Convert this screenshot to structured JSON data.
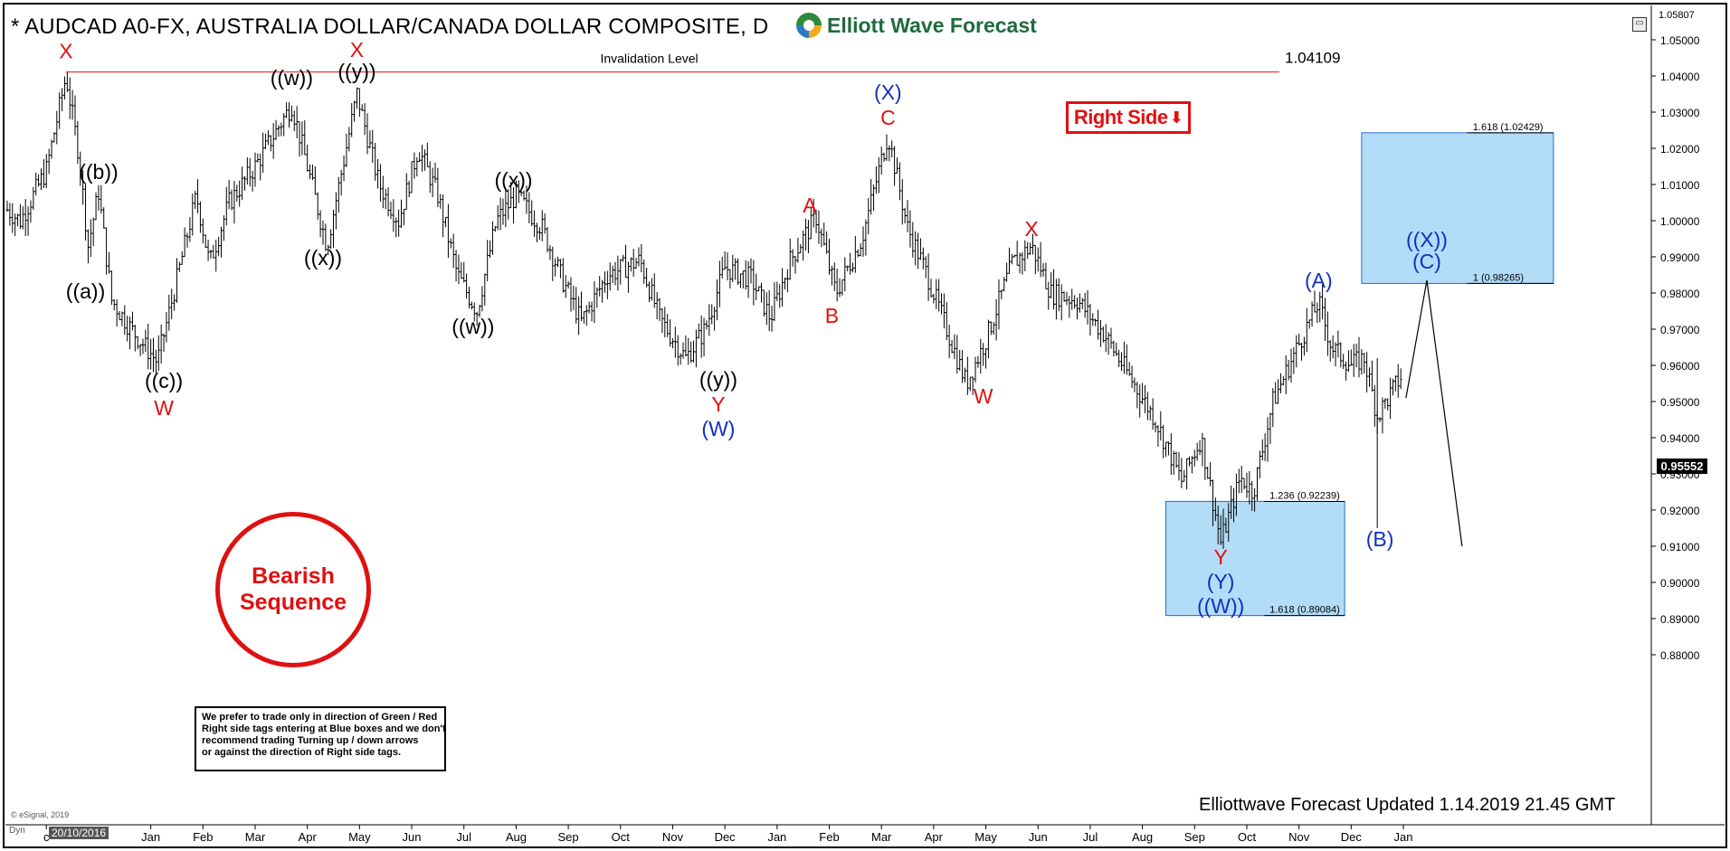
{
  "header": {
    "title": "* AUDCAD A0-FX, AUSTRALIA DOLLAR/CANADA DOLLAR COMPOSITE, D",
    "brand": "Elliott Wave Forecast"
  },
  "colors": {
    "bar": "#000000",
    "wave_red": "#e01010",
    "wave_blue": "#1030c0",
    "box_fill": "#b3dcf8",
    "box_border": "#1c6fd0",
    "invalidation": "#e01010"
  },
  "right_side_tag": {
    "label": "Right Side",
    "icon": "down-arrow-icon"
  },
  "bearish_badge": {
    "line1": "Bearish",
    "line2": "Sequence"
  },
  "note": {
    "line1": "We prefer to trade only in direction of Green / Red",
    "line2": "Right side tags entering at Blue boxes and we don't",
    "line3": "recommend trading Turning up / down arrows",
    "line4": "or against the direction of Right side tags."
  },
  "footer": "Elliottwave Forecast Updated 1.14.2019 21.45 GMT",
  "esignal": "© eSignal, 2019",
  "dyn_label": "Dyn",
  "date_box": "20/10/2016",
  "current_price": "0.95552",
  "top_price": "1.05807",
  "chart_data": {
    "type": "ohlc",
    "y_ticks": [
      1.05,
      1.04,
      1.03,
      1.02,
      1.01,
      1.0,
      0.99,
      0.98,
      0.97,
      0.96,
      0.95,
      0.94,
      0.93,
      0.92,
      0.91,
      0.9,
      0.89,
      0.88
    ],
    "ylim": [
      0.874,
      1.059
    ],
    "x_months": [
      {
        "label": "c",
        "t": 3
      },
      {
        "label": "Jan",
        "t": 11
      },
      {
        "label": "Feb",
        "t": 15
      },
      {
        "label": "Mar",
        "t": 19
      },
      {
        "label": "Apr",
        "t": 23
      },
      {
        "label": "May",
        "t": 27
      },
      {
        "label": "Jun",
        "t": 31
      },
      {
        "label": "Jul",
        "t": 35
      },
      {
        "label": "Aug",
        "t": 39
      },
      {
        "label": "Sep",
        "t": 43
      },
      {
        "label": "Oct",
        "t": 47
      },
      {
        "label": "Nov",
        "t": 51
      },
      {
        "label": "Dec",
        "t": 55
      },
      {
        "label": "Jan",
        "t": 59
      },
      {
        "label": "Feb",
        "t": 63
      },
      {
        "label": "Mar",
        "t": 67
      },
      {
        "label": "Apr",
        "t": 71
      },
      {
        "label": "May",
        "t": 75
      },
      {
        "label": "Jun",
        "t": 79
      },
      {
        "label": "Jul",
        "t": 83
      },
      {
        "label": "Aug",
        "t": 87
      },
      {
        "label": "Sep",
        "t": 91
      },
      {
        "label": "Oct",
        "t": 95
      },
      {
        "label": "Nov",
        "t": 99
      },
      {
        "label": "Dec",
        "t": 103
      },
      {
        "label": "Jan",
        "t": 107
      }
    ],
    "x_range": [
      0,
      126
    ],
    "price_path": [
      [
        0,
        1.003
      ],
      [
        1,
        1.0
      ],
      [
        3,
        1.014
      ],
      [
        4.5,
        1.0399
      ],
      [
        5.5,
        1.018
      ],
      [
        6.2,
        0.993
      ],
      [
        7,
        1.008
      ],
      [
        8,
        0.978
      ],
      [
        9.5,
        0.97
      ],
      [
        11.5,
        0.961
      ],
      [
        12.5,
        0.976
      ],
      [
        14.5,
        1.007
      ],
      [
        15.5,
        0.988
      ],
      [
        17,
        1.005
      ],
      [
        19,
        1.015
      ],
      [
        21.8,
        1.032
      ],
      [
        23,
        1.015
      ],
      [
        24.5,
        0.993
      ],
      [
        26.8,
        1.035
      ],
      [
        28.5,
        1.01
      ],
      [
        30,
        1.0
      ],
      [
        31.5,
        1.02
      ],
      [
        33,
        1.007
      ],
      [
        34.5,
        0.985
      ],
      [
        36,
        0.975
      ],
      [
        37.5,
        1.0
      ],
      [
        39,
        1.007
      ],
      [
        41,
        0.998
      ],
      [
        42.5,
        0.984
      ],
      [
        44,
        0.972
      ],
      [
        46,
        0.985
      ],
      [
        48.5,
        0.989
      ],
      [
        50,
        0.973
      ],
      [
        52,
        0.962
      ],
      [
        53.5,
        0.97
      ],
      [
        55,
        0.987
      ],
      [
        57,
        0.984
      ],
      [
        58.5,
        0.973
      ],
      [
        60,
        0.989
      ],
      [
        62,
        1.001
      ],
      [
        63.5,
        0.98
      ],
      [
        65.5,
        0.995
      ],
      [
        67.5,
        1.024
      ],
      [
        69,
        0.998
      ],
      [
        70.5,
        0.985
      ],
      [
        72,
        0.97
      ],
      [
        73.5,
        0.955
      ],
      [
        75,
        0.967
      ],
      [
        77,
        0.988
      ],
      [
        78.5,
        0.993
      ],
      [
        80,
        0.98
      ],
      [
        82,
        0.978
      ],
      [
        84,
        0.969
      ],
      [
        86,
        0.957
      ],
      [
        88,
        0.945
      ],
      [
        90,
        0.928
      ],
      [
        91.5,
        0.94
      ],
      [
        93,
        0.911
      ],
      [
        94.5,
        0.929
      ],
      [
        95.5,
        0.925
      ],
      [
        97,
        0.95
      ],
      [
        99,
        0.966
      ],
      [
        100.5,
        0.9775
      ],
      [
        101.5,
        0.965
      ],
      [
        103,
        0.96
      ],
      [
        104,
        0.962
      ],
      [
        105,
        0.946
      ],
      [
        106,
        0.952
      ],
      [
        107,
        0.958
      ]
    ],
    "invalidation": {
      "label": "Invalidation Level",
      "value": 1.04109,
      "value_label": "1.04109",
      "x_start": 4.5,
      "x_end": 97.5
    },
    "blue_boxes": [
      {
        "x0": 88.8,
        "x1": 102.5,
        "y_top": 0.92239,
        "y_bottom": 0.89084,
        "top_label": "1.236 (0.92239)",
        "bottom_label": "1.618 (0.89084)"
      },
      {
        "x0": 103.8,
        "x1": 118.5,
        "y_top": 1.02429,
        "y_bottom": 0.98265,
        "top_label": "1.618 (1.02429)",
        "bottom_label": "1 (0.98265)"
      }
    ],
    "projection_lines": [
      [
        [
          107.2,
          0.951
        ],
        [
          108.8,
          0.9835
        ],
        [
          111.5,
          0.91
        ]
      ]
    ],
    "wave_labels": [
      {
        "text": "X",
        "t": 4.5,
        "v": 1.0449,
        "color": "red"
      },
      {
        "text": "((b))",
        "t": 7.0,
        "v": 1.0115,
        "color": "black"
      },
      {
        "text": "((a))",
        "t": 6.0,
        "v": 0.9785,
        "color": "black"
      },
      {
        "text": "((c))",
        "t": 12.0,
        "v": 0.9537,
        "color": "black"
      },
      {
        "text": "W",
        "t": 12.0,
        "v": 0.9462,
        "color": "red"
      },
      {
        "text": "((w))",
        "t": 21.8,
        "v": 1.0375,
        "color": "black"
      },
      {
        "text": "((x))",
        "t": 24.2,
        "v": 0.9877,
        "color": "black"
      },
      {
        "text": "X",
        "t": 26.8,
        "v": 1.0452,
        "color": "red"
      },
      {
        "text": "((y))",
        "t": 26.8,
        "v": 1.0392,
        "color": "black"
      },
      {
        "text": "((w))",
        "t": 35.7,
        "v": 0.9688,
        "color": "black"
      },
      {
        "text": "((x))",
        "t": 38.8,
        "v": 1.0093,
        "color": "black"
      },
      {
        "text": "((y))",
        "t": 54.5,
        "v": 0.9541,
        "color": "black"
      },
      {
        "text": "Y",
        "t": 54.5,
        "v": 0.9473,
        "color": "red"
      },
      {
        "text": "(W)",
        "t": 54.5,
        "v": 0.9405,
        "color": "blue"
      },
      {
        "text": "A",
        "t": 61.5,
        "v": 1.0022,
        "color": "red"
      },
      {
        "text": "B",
        "t": 63.2,
        "v": 0.9717,
        "color": "red"
      },
      {
        "text": "(X)",
        "t": 67.5,
        "v": 1.0335,
        "color": "blue"
      },
      {
        "text": "C",
        "t": 67.5,
        "v": 1.0265,
        "color": "red"
      },
      {
        "text": "X",
        "t": 78.5,
        "v": 0.9958,
        "color": "red"
      },
      {
        "text": "W",
        "t": 74.8,
        "v": 0.9495,
        "color": "red"
      },
      {
        "text": "Y",
        "t": 93.0,
        "v": 0.905,
        "color": "red"
      },
      {
        "text": "(Y)",
        "t": 93.0,
        "v": 0.8982,
        "color": "blue"
      },
      {
        "text": "((W))",
        "t": 93.0,
        "v": 0.8915,
        "color": "blue"
      },
      {
        "text": "(A)",
        "t": 100.5,
        "v": 0.9815,
        "color": "blue"
      },
      {
        "text": "((X))",
        "t": 108.8,
        "v": 0.9928,
        "color": "blue"
      },
      {
        "text": "(C)",
        "t": 108.8,
        "v": 0.9867,
        "color": "blue"
      },
      {
        "text": "(B)",
        "t": 105.2,
        "v": 0.91,
        "color": "blue"
      }
    ]
  }
}
